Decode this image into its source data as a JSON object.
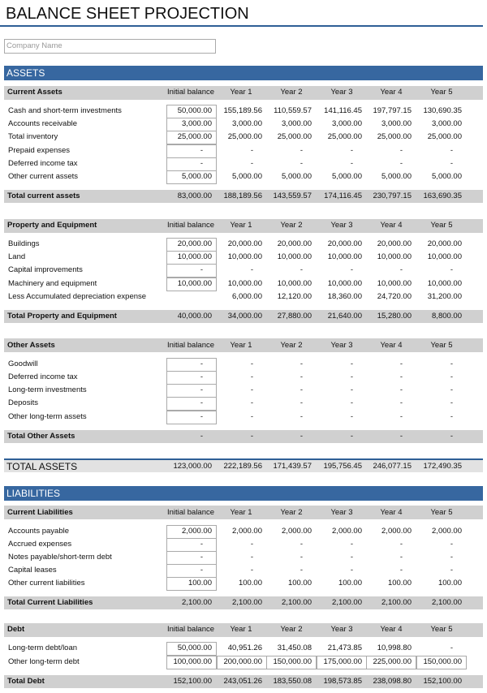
{
  "title": "BALANCE SHEET PROJECTION",
  "company_placeholder": "Company Name",
  "sections": [
    {
      "title": "ASSETS",
      "groups": [
        {
          "header": [
            "Current Assets",
            "Initial balance",
            "Year 1",
            "Year 2",
            "Year 3",
            "Year 4",
            "Year 5"
          ],
          "rows": [
            [
              "Cash and short-term investments",
              "50,000.00",
              "155,189.56",
              "110,559.57",
              "141,116.45",
              "197,797.15",
              "130,690.35"
            ],
            [
              "Accounts receivable",
              "3,000.00",
              "3,000.00",
              "3,000.00",
              "3,000.00",
              "3,000.00",
              "3,000.00"
            ],
            [
              "Total inventory",
              "25,000.00",
              "25,000.00",
              "25,000.00",
              "25,000.00",
              "25,000.00",
              "25,000.00"
            ],
            [
              "Prepaid expenses",
              "-",
              "-",
              "-",
              "-",
              "-",
              "-"
            ],
            [
              "Deferred income tax",
              "-",
              "-",
              "-",
              "-",
              "-",
              "-"
            ],
            [
              "Other current assets",
              "5,000.00",
              "5,000.00",
              "5,000.00",
              "5,000.00",
              "5,000.00",
              "5,000.00"
            ]
          ],
          "total": [
            "Total current assets",
            "83,000.00",
            "188,189.56",
            "143,559.57",
            "174,116.45",
            "230,797.15",
            "163,690.35"
          ]
        },
        {
          "header": [
            "Property and Equipment",
            "Initial balance",
            "Year 1",
            "Year 2",
            "Year 3",
            "Year 4",
            "Year 5"
          ],
          "rows": [
            [
              "Buildings",
              "20,000.00",
              "20,000.00",
              "20,000.00",
              "20,000.00",
              "20,000.00",
              "20,000.00"
            ],
            [
              "Land",
              "10,000.00",
              "10,000.00",
              "10,000.00",
              "10,000.00",
              "10,000.00",
              "10,000.00"
            ],
            [
              "Capital improvements",
              "-",
              "-",
              "-",
              "-",
              "-",
              "-"
            ],
            [
              "Machinery and equipment",
              "10,000.00",
              "10,000.00",
              "10,000.00",
              "10,000.00",
              "10,000.00",
              "10,000.00"
            ],
            [
              "Less Accumulated depreciation expense",
              null,
              "6,000.00",
              "12,120.00",
              "18,360.00",
              "24,720.00",
              "31,200.00"
            ]
          ],
          "total": [
            "Total Property and Equipment",
            "40,000.00",
            "34,000.00",
            "27,880.00",
            "21,640.00",
            "15,280.00",
            "8,800.00"
          ]
        },
        {
          "header": [
            "Other Assets",
            "Initial balance",
            "Year 1",
            "Year 2",
            "Year 3",
            "Year 4",
            "Year 5"
          ],
          "rows": [
            [
              "Goodwill",
              "-",
              "-",
              "-",
              "-",
              "-",
              "-"
            ],
            [
              "Deferred income tax",
              "-",
              "-",
              "-",
              "-",
              "-",
              "-"
            ],
            [
              "Long-term investments",
              "-",
              "-",
              "-",
              "-",
              "-",
              "-"
            ],
            [
              "Deposits",
              "-",
              "-",
              "-",
              "-",
              "-",
              "-"
            ],
            [
              "Other long-term assets",
              "-",
              "-",
              "-",
              "-",
              "-",
              "-"
            ]
          ],
          "total": [
            "Total Other Assets",
            "-",
            "-",
            "-",
            "-",
            "-",
            "-"
          ]
        }
      ],
      "grand_total": [
        "TOTAL ASSETS",
        "123,000.00",
        "222,189.56",
        "171,439.57",
        "195,756.45",
        "246,077.15",
        "172,490.35"
      ]
    },
    {
      "title": "LIABILITIES",
      "groups": [
        {
          "header": [
            "Current Liabilities",
            "Initial balance",
            "Year 1",
            "Year 2",
            "Year 3",
            "Year 4",
            "Year 5"
          ],
          "rows": [
            [
              "Accounts payable",
              "2,000.00",
              "2,000.00",
              "2,000.00",
              "2,000.00",
              "2,000.00",
              "2,000.00"
            ],
            [
              "Accrued expenses",
              "-",
              "-",
              "-",
              "-",
              "-",
              "-"
            ],
            [
              "Notes payable/short-term debt",
              "-",
              "-",
              "-",
              "-",
              "-",
              "-"
            ],
            [
              "Capital leases",
              "-",
              "-",
              "-",
              "-",
              "-",
              "-"
            ],
            [
              "Other current liabilities",
              "100.00",
              "100.00",
              "100.00",
              "100.00",
              "100.00",
              "100.00"
            ]
          ],
          "total": [
            "Total Current Liabilities",
            "2,100.00",
            "2,100.00",
            "2,100.00",
            "2,100.00",
            "2,100.00",
            "2,100.00"
          ]
        },
        {
          "header": [
            "Debt",
            "Initial balance",
            "Year 1",
            "Year 2",
            "Year 3",
            "Year 4",
            "Year 5"
          ],
          "rows": [
            [
              "Long-term debt/loan",
              "50,000.00",
              "40,951.26",
              "31,450.08",
              "21,473.85",
              "10,998.80",
              "-"
            ],
            [
              "Other long-term debt",
              "100,000.00",
              "200,000.00",
              "150,000.00",
              "175,000.00",
              "225,000.00",
              "150,000.00"
            ]
          ],
          "total": [
            "Total Debt",
            "152,100.00",
            "243,051.26",
            "183,550.08",
            "198,573.85",
            "238,098.80",
            "152,100.00"
          ]
        }
      ]
    }
  ]
}
